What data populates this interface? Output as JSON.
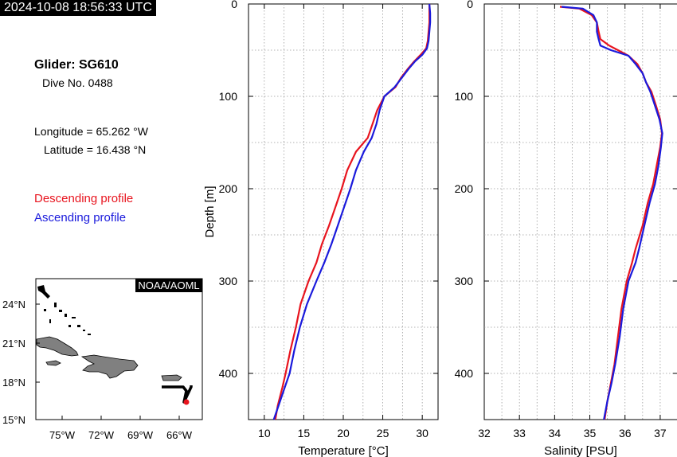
{
  "timestamp": "2024-10-08 18:56:33 UTC",
  "glider": {
    "title": "Glider: SG610",
    "dive": "Dive No. 0488",
    "longitude": "Longitude = 65.262 °W",
    "latitude": "Latitude = 16.438 °N"
  },
  "legend": {
    "descending": "Descending profile",
    "ascending": "Ascending profile"
  },
  "colors": {
    "descending": "#e8141e",
    "ascending": "#1a1adc",
    "land": "#808080",
    "track": "#000000"
  },
  "map": {
    "credit": "NOAA/AOML",
    "lat_ticks": [
      "24°N",
      "21°N",
      "18°N",
      "15°N"
    ],
    "lon_ticks": [
      "75°W",
      "72°W",
      "69°W",
      "66°W"
    ]
  },
  "chart_data": [
    {
      "type": "line",
      "xlabel": "Temperature [°C]",
      "ylabel": "Depth [m]",
      "xlim": [
        8,
        32
      ],
      "ylim": [
        450,
        0
      ],
      "x_ticks": [
        "10",
        "15",
        "20",
        "25",
        "30"
      ],
      "y_ticks": [
        "0",
        "100",
        "200",
        "300",
        "400"
      ],
      "grid": true,
      "series": [
        {
          "name": "Descending profile",
          "points": [
            [
              30.9,
              0
            ],
            [
              30.9,
              10
            ],
            [
              30.9,
              20
            ],
            [
              30.8,
              30
            ],
            [
              30.7,
              40
            ],
            [
              30.5,
              48
            ],
            [
              29.8,
              55
            ],
            [
              29.0,
              62
            ],
            [
              28.2,
              70
            ],
            [
              27.3,
              80
            ],
            [
              26.6,
              90
            ],
            [
              25.2,
              100
            ],
            [
              24.3,
              115
            ],
            [
              23.7,
              130
            ],
            [
              23.1,
              145
            ],
            [
              21.6,
              160
            ],
            [
              20.5,
              180
            ],
            [
              19.8,
              200
            ],
            [
              19.0,
              220
            ],
            [
              18.2,
              240
            ],
            [
              17.3,
              260
            ],
            [
              16.6,
              280
            ],
            [
              15.6,
              300
            ],
            [
              14.6,
              325
            ],
            [
              14.0,
              350
            ],
            [
              13.3,
              375
            ],
            [
              12.7,
              400
            ],
            [
              12.3,
              415
            ],
            [
              11.7,
              435
            ],
            [
              11.4,
              450
            ]
          ]
        },
        {
          "name": "Ascending profile",
          "points": [
            [
              30.9,
              0
            ],
            [
              31.0,
              10
            ],
            [
              31.0,
              20
            ],
            [
              30.9,
              30
            ],
            [
              30.8,
              40
            ],
            [
              30.6,
              48
            ],
            [
              30.0,
              55
            ],
            [
              29.1,
              62
            ],
            [
              28.3,
              70
            ],
            [
              27.4,
              80
            ],
            [
              26.5,
              90
            ],
            [
              25.2,
              100
            ],
            [
              24.6,
              115
            ],
            [
              24.2,
              130
            ],
            [
              23.6,
              145
            ],
            [
              22.6,
              160
            ],
            [
              21.6,
              180
            ],
            [
              20.9,
              200
            ],
            [
              20.1,
              220
            ],
            [
              19.3,
              240
            ],
            [
              18.5,
              260
            ],
            [
              17.6,
              280
            ],
            [
              16.6,
              300
            ],
            [
              15.4,
              325
            ],
            [
              14.5,
              350
            ],
            [
              13.8,
              375
            ],
            [
              13.2,
              400
            ],
            [
              12.6,
              415
            ],
            [
              11.8,
              435
            ],
            [
              11.2,
              450
            ]
          ]
        }
      ]
    },
    {
      "type": "line",
      "xlabel": "Salinity [PSU]",
      "ylabel": "",
      "xlim": [
        32,
        37.5
      ],
      "ylim": [
        450,
        0
      ],
      "x_ticks": [
        "32",
        "33",
        "34",
        "35",
        "36",
        "37"
      ],
      "y_ticks": [
        "0",
        "100",
        "200",
        "300",
        "400"
      ],
      "grid": true,
      "series": [
        {
          "name": "Descending profile",
          "points": [
            [
              34.15,
              3
            ],
            [
              34.7,
              5
            ],
            [
              35.05,
              12
            ],
            [
              35.2,
              20
            ],
            [
              35.25,
              30
            ],
            [
              35.3,
              38
            ],
            [
              35.55,
              45
            ],
            [
              35.8,
              50
            ],
            [
              36.1,
              56
            ],
            [
              36.35,
              65
            ],
            [
              36.5,
              75
            ],
            [
              36.6,
              85
            ],
            [
              36.75,
              95
            ],
            [
              36.88,
              110
            ],
            [
              37.0,
              125
            ],
            [
              37.05,
              140
            ],
            [
              37.0,
              155
            ],
            [
              36.9,
              175
            ],
            [
              36.8,
              195
            ],
            [
              36.65,
              215
            ],
            [
              36.5,
              240
            ],
            [
              36.3,
              265
            ],
            [
              36.2,
              280
            ],
            [
              36.05,
              300
            ],
            [
              35.9,
              330
            ],
            [
              35.8,
              360
            ],
            [
              35.7,
              390
            ],
            [
              35.6,
              410
            ],
            [
              35.5,
              430
            ],
            [
              35.42,
              450
            ]
          ]
        },
        {
          "name": "Ascending profile",
          "points": [
            [
              34.2,
              3
            ],
            [
              34.8,
              5
            ],
            [
              35.1,
              12
            ],
            [
              35.2,
              20
            ],
            [
              35.2,
              30
            ],
            [
              35.25,
              38
            ],
            [
              35.3,
              45
            ],
            [
              35.6,
              50
            ],
            [
              36.1,
              56
            ],
            [
              36.3,
              65
            ],
            [
              36.5,
              75
            ],
            [
              36.6,
              85
            ],
            [
              36.72,
              95
            ],
            [
              36.85,
              110
            ],
            [
              36.98,
              125
            ],
            [
              37.06,
              140
            ],
            [
              37.02,
              155
            ],
            [
              36.95,
              175
            ],
            [
              36.85,
              195
            ],
            [
              36.7,
              215
            ],
            [
              36.55,
              240
            ],
            [
              36.4,
              265
            ],
            [
              36.3,
              280
            ],
            [
              36.1,
              300
            ],
            [
              35.95,
              330
            ],
            [
              35.85,
              360
            ],
            [
              35.72,
              390
            ],
            [
              35.62,
              410
            ],
            [
              35.5,
              430
            ],
            [
              35.4,
              450
            ]
          ]
        }
      ]
    }
  ]
}
